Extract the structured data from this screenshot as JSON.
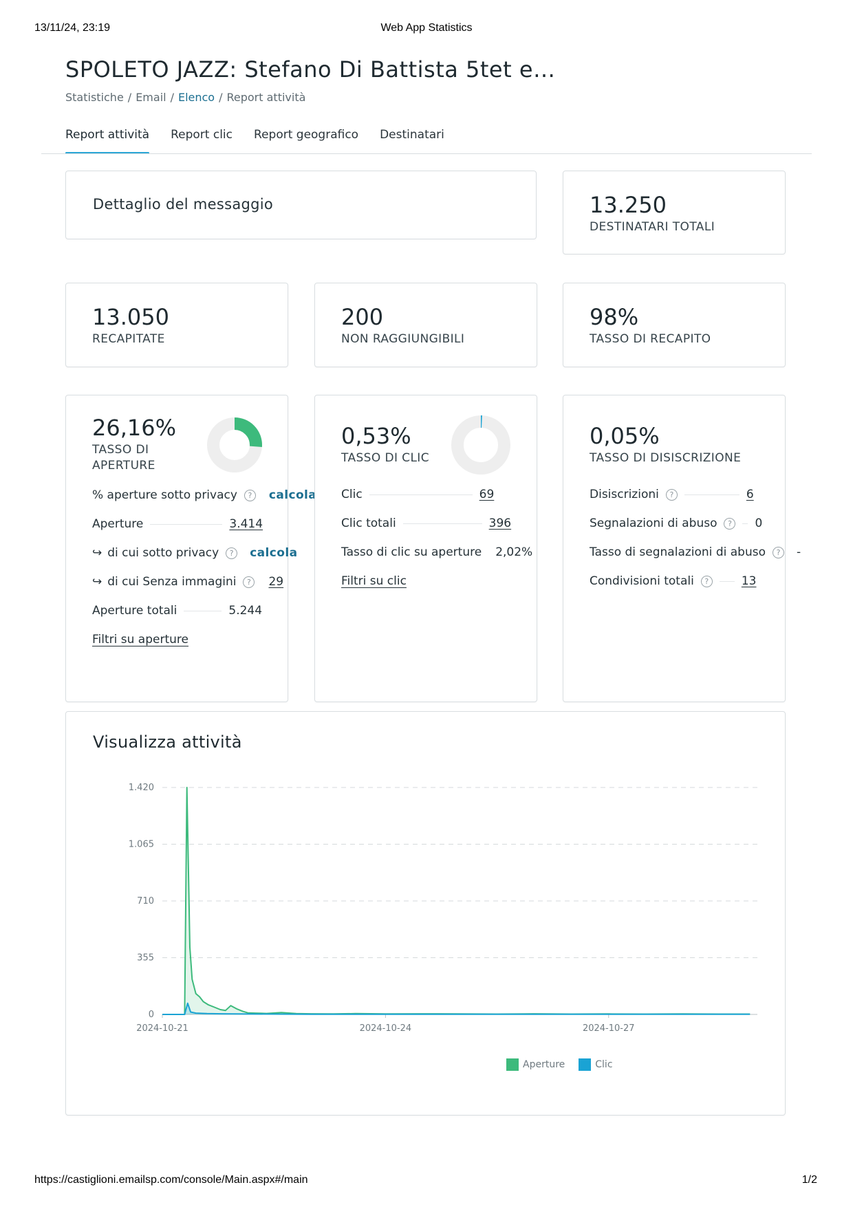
{
  "print": {
    "date": "13/11/24, 23:19",
    "title": "Web App Statistics",
    "url": "https://castiglioni.emailsp.com/console/Main.aspx#/main",
    "page": "1/2"
  },
  "page_title": "SPOLETO JAZZ: Stefano Di Battista 5tet e…",
  "breadcrumb": [
    "Statistiche",
    "Email",
    "Elenco",
    "Report attività"
  ],
  "tabs": [
    "Report attività",
    "Report clic",
    "Report geografico",
    "Destinatari"
  ],
  "message_detail": {
    "title": "Dettaglio del messaggio"
  },
  "stats": {
    "destinatari": {
      "value": "13.250",
      "label": "DESTINATARI TOTALI"
    },
    "recapitate": {
      "value": "13.050",
      "label": "RECAPITATE"
    },
    "non_raggiungibili": {
      "value": "200",
      "label": "NON RAGGIUNGIBILI"
    },
    "tasso_recapito": {
      "value": "98%",
      "label": "TASSO DI RECAPITO"
    }
  },
  "aperture": {
    "rate": "26,16%",
    "label_1": "TASSO DI",
    "label_2": "APERTURE",
    "donut_fraction": 0.2616,
    "rows": {
      "privacy_label": "% aperture sotto privacy",
      "privacy_action": "calcola",
      "aperture_label": "Aperture",
      "aperture_value": "3.414",
      "sotto_privacy_label": "di cui sotto privacy",
      "sotto_privacy_action": "calcola",
      "senza_immagini_label": "di cui Senza immagini",
      "senza_immagini_value": "29",
      "totali_label": "Aperture totali",
      "totali_value": "5.244"
    },
    "filter_link": "Filtri su aperture"
  },
  "clic": {
    "rate": "0,53%",
    "label": "TASSO DI CLIC",
    "donut_fraction": 0.0053,
    "rows": {
      "clic_label": "Clic",
      "clic_value": "69",
      "totali_label": "Clic totali",
      "totali_value": "396",
      "su_aperture_label": "Tasso di clic su aperture",
      "su_aperture_value": "2,02%"
    },
    "filter_link": "Filtri su clic"
  },
  "disiscrizione": {
    "rate": "0,05%",
    "label": "TASSO DI DISISCRIZIONE",
    "rows": {
      "disiscrizioni_label": "Disiscrizioni",
      "disiscrizioni_value": "6",
      "abuso_label": "Segnalazioni di abuso",
      "abuso_value": "0",
      "tasso_abuso_label": "Tasso di segnalazioni di abuso",
      "tasso_abuso_value": "-",
      "condivisioni_label": "Condivisioni totali",
      "condivisioni_value": "13"
    }
  },
  "colors": {
    "accent": "#2aa6d6",
    "link": "#1c6f91",
    "aperture": "#3dba7c",
    "clic": "#1aa3d4",
    "donut_bg": "#eeeeee"
  },
  "chart_data": {
    "type": "area",
    "title": "Visualizza attività",
    "xlabel": "",
    "ylabel": "",
    "ylim": [
      0,
      1420
    ],
    "yticks": [
      0,
      355,
      710,
      1065,
      1420
    ],
    "ytick_labels": [
      "0",
      "355",
      "710",
      "1.065",
      "1.420"
    ],
    "xlim": [
      0,
      8
    ],
    "xticks": [
      0,
      3,
      6
    ],
    "xtick_labels": [
      "2024-10-21",
      "2024-10-24",
      "2024-10-27"
    ],
    "x_unit": "days from 2024-10-21",
    "grid": true,
    "legend_position": "bottom-center",
    "series": [
      {
        "name": "Aperture",
        "color": "#3dba7c",
        "x": [
          0,
          0.3,
          0.33,
          0.37,
          0.4,
          0.45,
          0.5,
          0.55,
          0.62,
          0.7,
          0.78,
          0.85,
          0.92,
          1.0,
          1.08,
          1.15,
          1.25,
          1.4,
          1.6,
          1.8,
          2.0,
          2.3,
          2.6,
          3.0,
          3.5,
          4.0,
          4.5,
          5.0,
          5.5,
          6.0,
          6.5,
          7.0,
          7.5,
          7.9
        ],
        "y": [
          0,
          0,
          1420,
          420,
          220,
          130,
          110,
          80,
          60,
          45,
          30,
          25,
          55,
          35,
          20,
          10,
          8,
          6,
          12,
          5,
          4,
          3,
          5,
          3,
          4,
          3,
          2,
          4,
          2,
          3,
          2,
          3,
          2,
          2
        ]
      },
      {
        "name": "Clic",
        "color": "#1aa3d4",
        "x": [
          0,
          0.3,
          0.34,
          0.38,
          0.45,
          0.6,
          0.8,
          1.0,
          1.5,
          2.0,
          3.0,
          4.0,
          5.0,
          6.0,
          7.0,
          7.9
        ],
        "y": [
          0,
          0,
          70,
          15,
          8,
          5,
          4,
          3,
          2,
          1,
          1,
          1,
          1,
          1,
          1,
          1
        ]
      }
    ]
  }
}
